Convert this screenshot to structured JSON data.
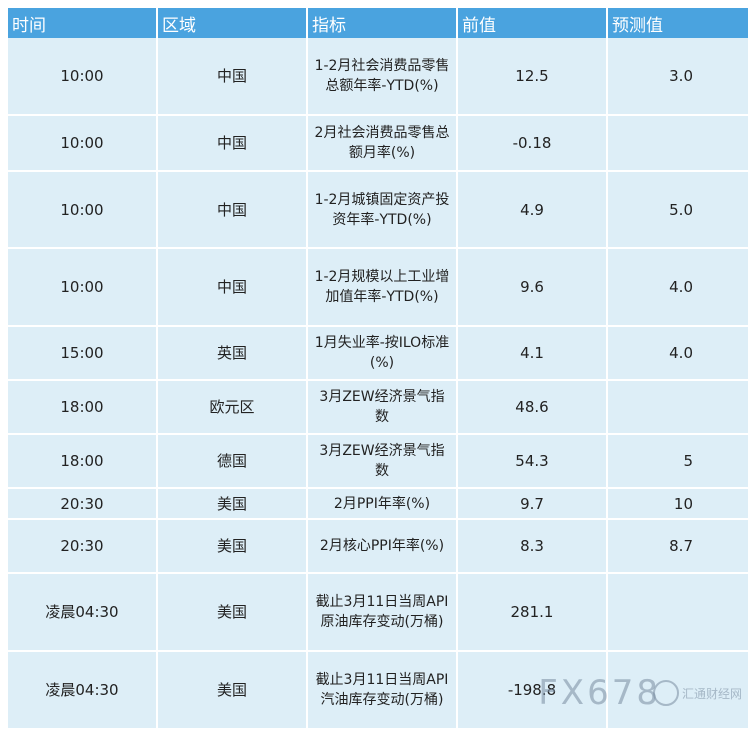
{
  "headers": [
    "时间",
    "区域",
    "指标",
    "前值",
    "预测值"
  ],
  "rows": [
    {
      "time": "10:00",
      "region": "中国",
      "indicator": "1-2月社会消费品零售总额年率-YTD(%)",
      "prev": "12.5",
      "forecast": "3.0"
    },
    {
      "time": "10:00",
      "region": "中国",
      "indicator": "2月社会消费品零售总额月率(%)",
      "prev": "-0.18",
      "forecast": ""
    },
    {
      "time": "10:00",
      "region": "中国",
      "indicator": "1-2月城镇固定资产投资年率-YTD(%)",
      "prev": "4.9",
      "forecast": "5.0"
    },
    {
      "time": "10:00",
      "region": "中国",
      "indicator": "1-2月规模以上工业增加值年率-YTD(%)",
      "prev": "9.6",
      "forecast": "4.0"
    },
    {
      "time": "15:00",
      "region": "英国",
      "indicator": "1月失业率-按ILO标准(%)",
      "prev": "4.1",
      "forecast": "4.0"
    },
    {
      "time": "18:00",
      "region": "欧元区",
      "indicator": "3月ZEW经济景气指数",
      "prev": "48.6",
      "forecast": ""
    },
    {
      "time": "18:00",
      "region": "德国",
      "indicator": "3月ZEW经济景气指数",
      "prev": "54.3",
      "forecast": "5"
    },
    {
      "time": "20:30",
      "region": "美国",
      "indicator": "2月PPI年率(%)",
      "prev": "9.7",
      "forecast": "10"
    },
    {
      "time": "20:30",
      "region": "美国",
      "indicator": "2月核心PPI年率(%)",
      "prev": "8.3",
      "forecast": "8.7"
    },
    {
      "time": "凌晨04:30",
      "region": "美国",
      "indicator": "截止3月11日当周API原油库存变动(万桶)",
      "prev": "281.1",
      "forecast": ""
    },
    {
      "time": "凌晨04:30",
      "region": "美国",
      "indicator": "截止3月11日当周API汽油库存变动(万桶)",
      "prev": "-198.8",
      "forecast": ""
    }
  ],
  "watermark": {
    "main": "FX678",
    "sub": "汇通财经网"
  }
}
